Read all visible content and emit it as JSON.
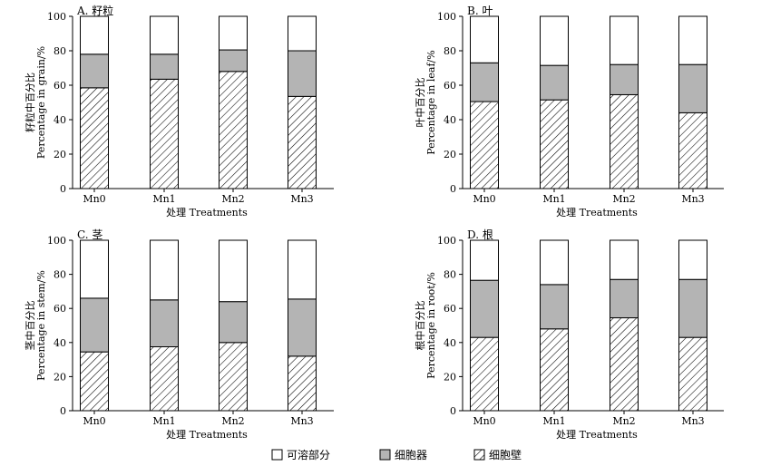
{
  "chart_data": [
    {
      "type": "bar",
      "stacked": true,
      "title": "A. 籽粒",
      "xlabel": "处理 Treatments",
      "ylabel_cn": "籽粒中百分比",
      "ylabel_en": "Percentage in grain/%",
      "ylim": [
        0,
        100
      ],
      "yticks": [
        0,
        20,
        40,
        60,
        80,
        100
      ],
      "categories": [
        "Mn0",
        "Mn1",
        "Mn2",
        "Mn3"
      ],
      "series": [
        {
          "name": "细胞壁",
          "values": [
            58.5,
            63.5,
            68,
            53.5
          ]
        },
        {
          "name": "细胞器",
          "values": [
            19.5,
            14.5,
            12.5,
            26.5
          ]
        },
        {
          "name": "可溶部分",
          "values": [
            22,
            22,
            19.5,
            20
          ]
        }
      ]
    },
    {
      "type": "bar",
      "stacked": true,
      "title": "B. 叶",
      "xlabel": "处理 Treatments",
      "ylabel_cn": "叶中百分比",
      "ylabel_en": "Percentage in leaf/%",
      "ylim": [
        0,
        100
      ],
      "yticks": [
        0,
        20,
        40,
        60,
        80,
        100
      ],
      "categories": [
        "Mn0",
        "Mn1",
        "Mn2",
        "Mn3"
      ],
      "series": [
        {
          "name": "细胞壁",
          "values": [
            50.5,
            51.5,
            54.5,
            44
          ]
        },
        {
          "name": "细胞器",
          "values": [
            22.5,
            20,
            17.5,
            28
          ]
        },
        {
          "name": "可溶部分",
          "values": [
            27,
            28.5,
            28,
            28
          ]
        }
      ]
    },
    {
      "type": "bar",
      "stacked": true,
      "title": "C. 茎",
      "xlabel": "处理 Treatments",
      "ylabel_cn": "茎中百分比",
      "ylabel_en": "Percentage in stem/%",
      "ylim": [
        0,
        100
      ],
      "yticks": [
        0,
        20,
        40,
        60,
        80,
        100
      ],
      "categories": [
        "Mn0",
        "Mn1",
        "Mn2",
        "Mn3"
      ],
      "series": [
        {
          "name": "细胞壁",
          "values": [
            34.5,
            37.5,
            40,
            32
          ]
        },
        {
          "name": "细胞器",
          "values": [
            31.5,
            27.5,
            24,
            33.5
          ]
        },
        {
          "name": "可溶部分",
          "values": [
            34,
            35,
            36,
            34.5
          ]
        }
      ]
    },
    {
      "type": "bar",
      "stacked": true,
      "title": "D. 根",
      "xlabel": "处理 Treatments",
      "ylabel_cn": "根中百分比",
      "ylabel_en": "Percentage in root/%",
      "ylim": [
        0,
        100
      ],
      "yticks": [
        0,
        20,
        40,
        60,
        80,
        100
      ],
      "categories": [
        "Mn0",
        "Mn1",
        "Mn2",
        "Mn3"
      ],
      "series": [
        {
          "name": "细胞壁",
          "values": [
            43,
            48,
            54.5,
            43
          ]
        },
        {
          "name": "细胞器",
          "values": [
            33.5,
            26,
            22.5,
            34
          ]
        },
        {
          "name": "可溶部分",
          "values": [
            23.5,
            26,
            23,
            23
          ]
        }
      ]
    }
  ],
  "legend": {
    "items": [
      {
        "label": "可溶部分",
        "fill": "white"
      },
      {
        "label": "细胞器",
        "fill": "gray"
      },
      {
        "label": "细胞壁",
        "fill": "hatch"
      }
    ]
  },
  "colors": {
    "soluble": "#ffffff",
    "organelle": "#b4b4b4",
    "wall_hatch": "#000000",
    "axis": "#000000"
  }
}
